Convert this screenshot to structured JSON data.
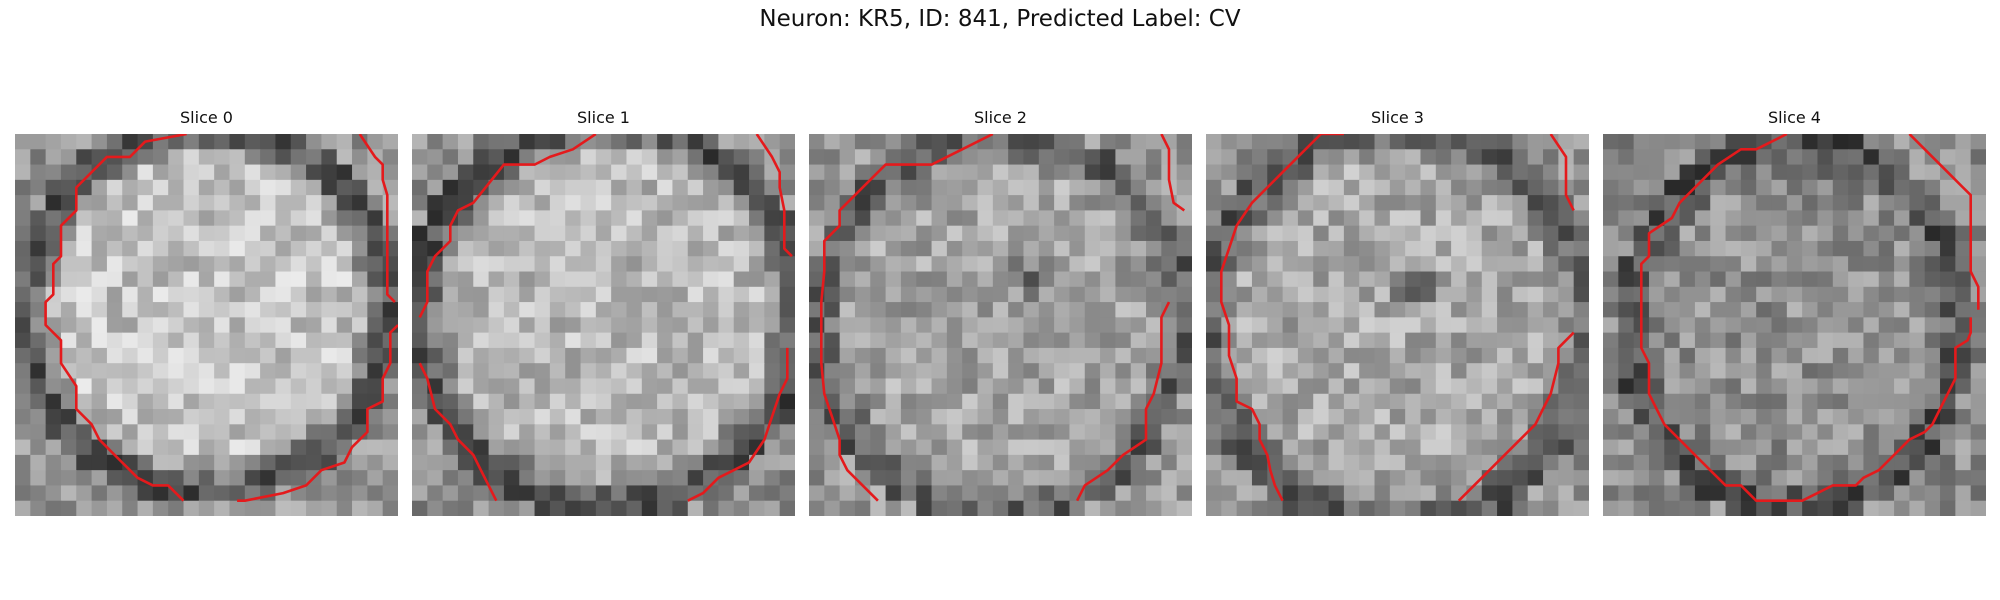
{
  "figure": {
    "title": "Neuron: KR5, ID: 841, Predicted Label: CV"
  },
  "slices": [
    {
      "label": "Slice 0"
    },
    {
      "label": "Slice 1"
    },
    {
      "label": "Slice 2"
    },
    {
      "label": "Slice 3"
    },
    {
      "label": "Slice 4"
    }
  ],
  "colors": {
    "contour": "#e41a1c",
    "background": "#ffffff"
  }
}
